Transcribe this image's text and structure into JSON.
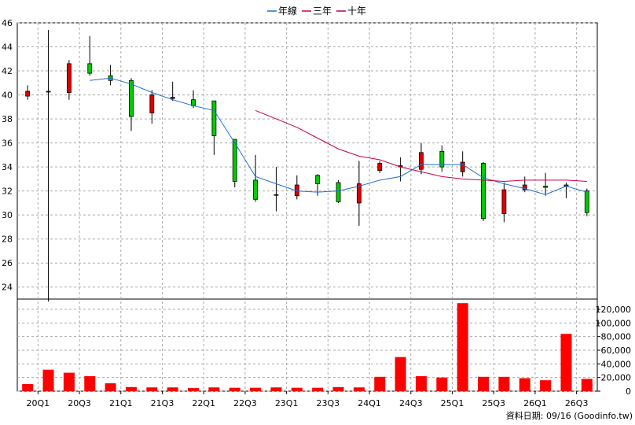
{
  "chart_data": [
    {
      "type": "candlestick",
      "legend": {
        "position": "top-center",
        "entries": [
          {
            "name": "年線",
            "color": "#1f6fd6"
          },
          {
            "name": "三年",
            "color": "#cc0044"
          },
          {
            "name": "十年",
            "color": "#aa0077"
          }
        ]
      },
      "grid": true,
      "ylim": [
        23,
        46
      ],
      "yticks": [
        "24",
        "26",
        "28",
        "30",
        "32",
        "34",
        "36",
        "38",
        "40",
        "42",
        "44",
        "46"
      ],
      "xticks": [
        "20Q1",
        "20Q3",
        "21Q1",
        "21Q3",
        "22Q1",
        "22Q3",
        "23Q1",
        "23Q3",
        "24Q1",
        "24Q3",
        "25Q1",
        "25Q3",
        "26Q1",
        "26Q3"
      ],
      "candles": [
        {
          "q": 0,
          "o": 40.3,
          "h": 40.8,
          "l": 39.6,
          "c": 39.9
        },
        {
          "q": 1,
          "o": 40.3,
          "h": 45.4,
          "l": 22.8,
          "c": 40.3
        },
        {
          "q": 2,
          "o": 42.6,
          "h": 42.9,
          "l": 39.6,
          "c": 40.2
        },
        {
          "q": 3,
          "o": 41.8,
          "h": 44.9,
          "l": 41.6,
          "c": 42.6
        },
        {
          "q": 4,
          "o": 41.2,
          "h": 42.5,
          "l": 40.8,
          "c": 41.6
        },
        {
          "q": 5,
          "o": 38.2,
          "h": 41.4,
          "l": 37.0,
          "c": 41.2
        },
        {
          "q": 6,
          "o": 40.0,
          "h": 40.4,
          "l": 37.6,
          "c": 38.5
        },
        {
          "q": 7,
          "o": 39.8,
          "h": 41.1,
          "l": 39.5,
          "c": 39.7
        },
        {
          "q": 8,
          "o": 39.1,
          "h": 40.4,
          "l": 38.9,
          "c": 39.6
        },
        {
          "q": 9,
          "o": 36.6,
          "h": 39.5,
          "l": 35.0,
          "c": 39.5
        },
        {
          "q": 10,
          "o": 32.8,
          "h": 36.3,
          "l": 32.3,
          "c": 36.3
        },
        {
          "q": 11,
          "o": 31.3,
          "h": 35.0,
          "l": 31.1,
          "c": 32.9
        },
        {
          "q": 12,
          "o": 31.7,
          "h": 34.0,
          "l": 30.3,
          "c": 31.7
        },
        {
          "q": 13,
          "o": 32.5,
          "h": 33.3,
          "l": 31.3,
          "c": 31.6
        },
        {
          "q": 14,
          "o": 32.6,
          "h": 33.4,
          "l": 31.6,
          "c": 33.3
        },
        {
          "q": 15,
          "o": 31.1,
          "h": 32.9,
          "l": 31.0,
          "c": 32.7
        },
        {
          "q": 16,
          "o": 32.6,
          "h": 34.5,
          "l": 29.1,
          "c": 31.0
        },
        {
          "q": 17,
          "o": 34.3,
          "h": 34.5,
          "l": 33.5,
          "c": 33.7
        },
        {
          "q": 18,
          "o": 34.1,
          "h": 34.8,
          "l": 32.8,
          "c": 34.0
        },
        {
          "q": 19,
          "o": 35.2,
          "h": 36.0,
          "l": 33.4,
          "c": 33.8
        },
        {
          "q": 20,
          "o": 34.0,
          "h": 35.8,
          "l": 33.6,
          "c": 35.3
        },
        {
          "q": 21,
          "o": 34.4,
          "h": 35.3,
          "l": 33.2,
          "c": 33.6
        },
        {
          "q": 22,
          "o": 29.7,
          "h": 34.4,
          "l": 29.5,
          "c": 34.3
        },
        {
          "q": 23,
          "o": 32.1,
          "h": 32.7,
          "l": 29.4,
          "c": 30.1
        },
        {
          "q": 24,
          "o": 32.5,
          "h": 33.2,
          "l": 31.9,
          "c": 32.1
        },
        {
          "q": 25,
          "o": 32.3,
          "h": 33.5,
          "l": 31.6,
          "c": 32.4
        },
        {
          "q": 26,
          "o": 32.5,
          "h": 32.7,
          "l": 31.4,
          "c": 32.4
        },
        {
          "q": 27,
          "o": 30.2,
          "h": 32.2,
          "l": 29.9,
          "c": 32.0
        }
      ],
      "series": [
        {
          "name": "年線",
          "x": [
            3,
            4,
            5,
            6,
            7,
            8,
            9,
            10,
            11,
            12,
            13,
            14,
            15,
            16,
            17,
            18,
            19,
            20,
            21,
            22,
            23,
            24,
            25,
            26,
            27
          ],
          "values": [
            41.2,
            41.4,
            40.9,
            40.2,
            39.6,
            39.1,
            38.7,
            36.0,
            33.2,
            32.6,
            32.0,
            31.9,
            32.0,
            32.4,
            32.9,
            33.2,
            34.2,
            34.2,
            34.2,
            33.1,
            32.6,
            32.2,
            31.7,
            32.4,
            31.9
          ]
        },
        {
          "name": "三年",
          "x": [
            11,
            12,
            13,
            14,
            15,
            16,
            17,
            18,
            19,
            20,
            21,
            22,
            23,
            24,
            25,
            26,
            27
          ],
          "values": [
            38.7,
            38.0,
            37.3,
            36.4,
            35.5,
            34.9,
            34.6,
            34.0,
            33.6,
            33.2,
            33.0,
            32.9,
            32.8,
            32.9,
            32.9,
            32.9,
            32.8
          ]
        }
      ]
    },
    {
      "type": "bar",
      "ylim": [
        0,
        135000
      ],
      "yticks": [
        "0",
        "20,000",
        "40,000",
        "60,000",
        "80,000",
        "100,000",
        "120,000"
      ],
      "values": [
        10500,
        31500,
        27000,
        22000,
        11500,
        6000,
        5500,
        5500,
        4500,
        5500,
        5000,
        5000,
        5500,
        5000,
        5000,
        6000,
        5500,
        21000,
        50000,
        22000,
        20000,
        129000,
        21000,
        21000,
        19000,
        16000,
        84000,
        18000
      ]
    }
  ],
  "footer": {
    "source": "資料日期: 09/16  (Goodinfo.tw)"
  }
}
